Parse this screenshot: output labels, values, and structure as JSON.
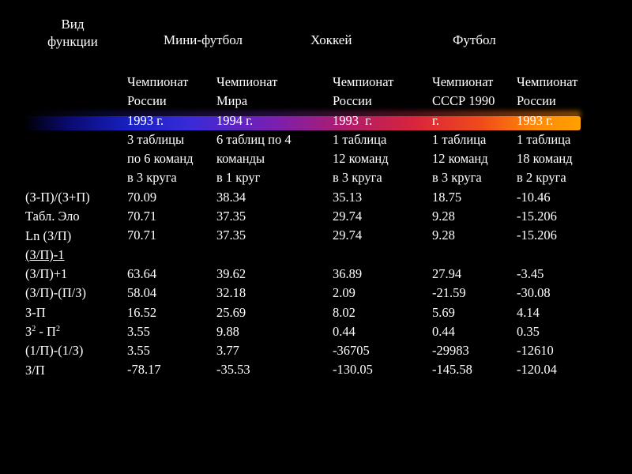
{
  "headers": {
    "function_type": "Вид функции",
    "mini_football": "Мини-футбол",
    "hockey": "Хоккей",
    "football": "Футбол"
  },
  "columns": [
    {
      "desc": [
        "Чемпионат",
        "России",
        "1993 г.",
        "3 таблицы",
        "по 6 команд",
        "в 3 круга"
      ],
      "values": [
        "70.09",
        "70.71",
        "70.71",
        "",
        "63.64",
        "58.04",
        "16.52",
        "3.55",
        "3.55",
        "-78.17"
      ]
    },
    {
      "desc": [
        "Чемпионат",
        "Мира",
        "1994 г.",
        "6 таблиц по 4",
        "команды",
        "в 1 круг"
      ],
      "values": [
        "38.34",
        "37.35",
        "37.35",
        "",
        "39.62",
        "32.18",
        "25.69",
        "9.88",
        "3.77",
        "-35.53"
      ]
    },
    {
      "desc": [
        "Чемпионат",
        "России",
        "1993  г.",
        "1 таблица",
        "12 команд",
        "в 3 круга"
      ],
      "values": [
        "35.13",
        "29.74",
        "29.74",
        "",
        "36.89",
        "2.09",
        "8.02",
        "0.44",
        "-36705",
        "-130.05"
      ]
    },
    {
      "desc": [
        "Чемпионат",
        "СССР 1990",
        "г.",
        "1 таблица",
        "12 команд",
        "в 3 круга"
      ],
      "values": [
        "18.75",
        "9.28",
        "9.28",
        "",
        "27.94",
        "-21.59",
        "5.69",
        "0.44",
        "-29983",
        "-145.58"
      ]
    },
    {
      "desc": [
        "Чемпионат",
        "России",
        "1993 г.",
        "1 таблица",
        "18 команд",
        "в 2 круга"
      ],
      "values": [
        "-10.46",
        "-15.206",
        "-15.206",
        "",
        "-3.45",
        "-30.08",
        "4.14",
        "0.35",
        "-12610",
        "-120.04"
      ]
    }
  ],
  "row_labels": [
    "(З-П)/(З+П)",
    "Табл.  Эло",
    "Ln (З/П)",
    "(З/П)-1",
    "(З/П)+1",
    "(З/П)-(П/З)",
    "З-П",
    "",
    "(1/П)-(1/З)",
    "З/П"
  ],
  "row8": {
    "z": "З",
    "sup1": "2",
    "mid": " - П",
    "sup2": "2"
  }
}
